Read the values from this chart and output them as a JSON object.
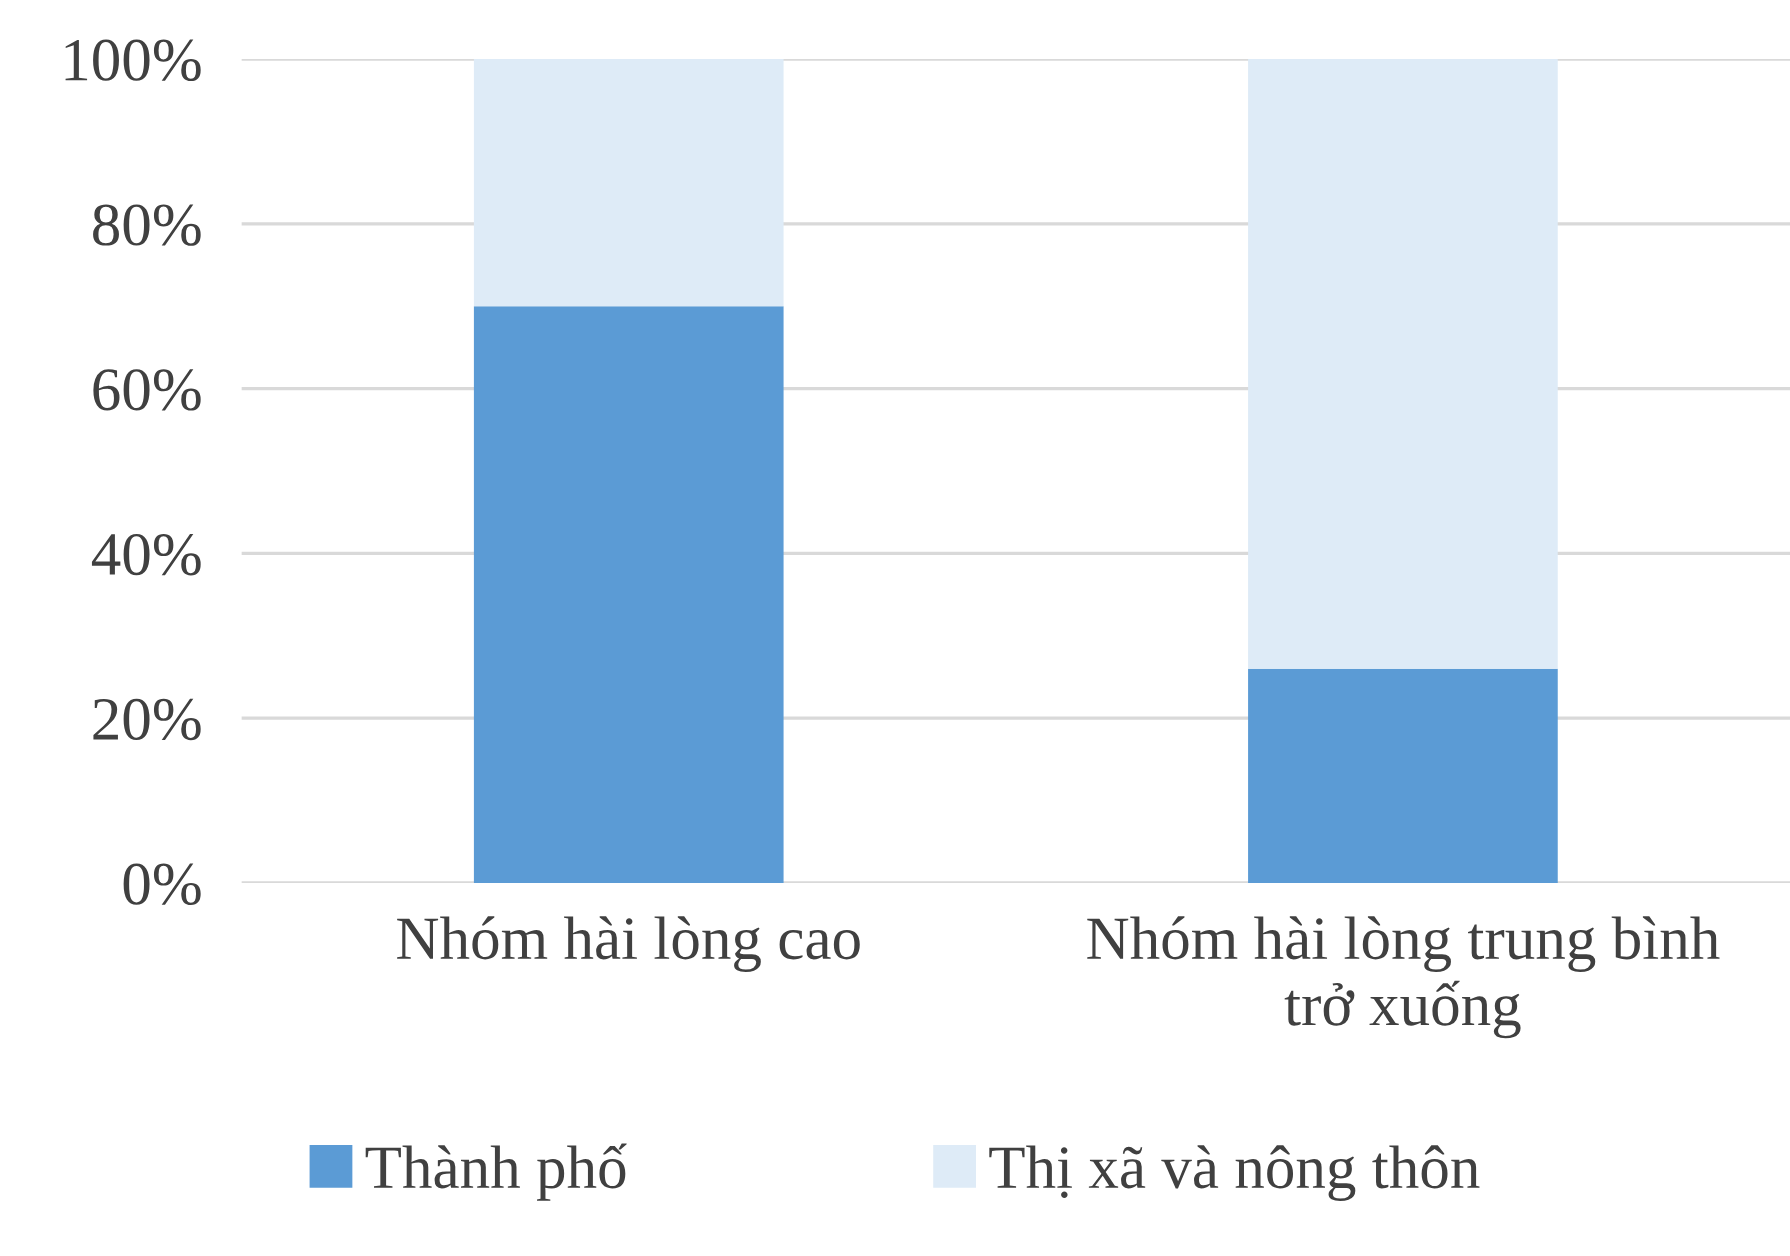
{
  "chart_data": {
    "type": "bar",
    "stacked": true,
    "categories": [
      "Nhóm hài lòng cao",
      "Nhóm hài lòng trung bình trở xuống"
    ],
    "series": [
      {
        "name": "Thành phố",
        "color": "#5b9bd5",
        "values": [
          70,
          26
        ]
      },
      {
        "name": "Thị xã và nông thôn",
        "color": "#deebf7",
        "values": [
          30,
          74
        ]
      }
    ],
    "ylim": [
      0,
      100
    ],
    "yticks": [
      {
        "value": 0,
        "label": "0%"
      },
      {
        "value": 20,
        "label": "20%"
      },
      {
        "value": 40,
        "label": "40%"
      },
      {
        "value": 60,
        "label": "60%"
      },
      {
        "value": 80,
        "label": "80%"
      },
      {
        "value": 100,
        "label": "100%"
      }
    ],
    "grid": "y",
    "legend": "bottom"
  }
}
